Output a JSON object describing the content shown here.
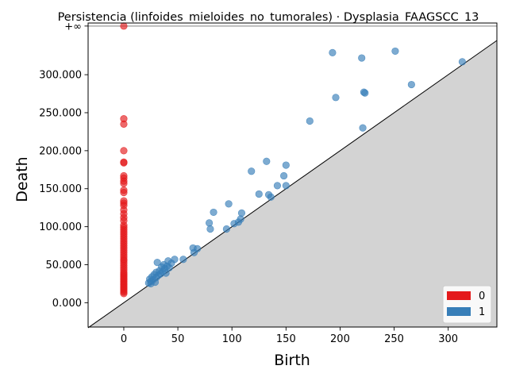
{
  "chart_data": {
    "type": "scatter",
    "title": "Persistencia (linfoides_mieloides_no_tumorales) · Dysplasia_FAAGSCC_13",
    "xlabel": "Birth",
    "ylabel": "Death",
    "xlim": [
      -33,
      345
    ],
    "ylim": [
      -32,
      368
    ],
    "x_ticks": [
      0,
      50,
      100,
      150,
      200,
      250,
      300
    ],
    "x_tick_labels": [
      "0",
      "50",
      "100",
      "150",
      "200",
      "250",
      "300"
    ],
    "y_ticks": [
      0,
      50,
      100,
      150,
      200,
      250,
      300
    ],
    "y_tick_labels": [
      "0.000",
      "50.000",
      "100.000",
      "150.000",
      "200.000",
      "250.000",
      "300.000"
    ],
    "infinity_value": 364,
    "infinity_label": "+∞",
    "diagonal": true,
    "legend": {
      "placement": "lower-right"
    },
    "colors": {
      "h0": "#e41a1c",
      "h1": "#377eb8",
      "shade": "#d3d3d3",
      "inf_line": "#808080"
    },
    "series": [
      {
        "name": "0",
        "color": "#e41a1c",
        "points": [
          [
            0,
            364
          ],
          [
            0,
            242
          ],
          [
            0,
            235
          ],
          [
            0,
            200
          ],
          [
            0,
            185
          ],
          [
            0,
            184
          ],
          [
            0,
            167
          ],
          [
            0,
            164
          ],
          [
            0,
            160
          ],
          [
            0,
            157
          ],
          [
            0,
            148
          ],
          [
            0,
            145
          ],
          [
            0,
            134
          ],
          [
            0,
            131
          ],
          [
            0,
            128
          ],
          [
            0,
            122
          ],
          [
            0,
            117
          ],
          [
            0,
            112
          ],
          [
            0,
            108
          ],
          [
            0,
            102
          ],
          [
            0,
            99
          ],
          [
            0,
            96
          ],
          [
            0,
            93
          ],
          [
            0,
            90
          ],
          [
            0,
            87
          ],
          [
            0,
            84
          ],
          [
            0,
            81
          ],
          [
            0,
            78
          ],
          [
            0,
            75
          ],
          [
            0,
            72
          ],
          [
            0,
            69
          ],
          [
            0,
            66
          ],
          [
            0,
            63
          ],
          [
            0,
            60
          ],
          [
            0,
            57
          ],
          [
            0,
            55
          ],
          [
            0,
            52
          ],
          [
            0,
            49
          ],
          [
            0,
            46
          ],
          [
            0,
            43
          ],
          [
            0,
            40
          ],
          [
            0,
            38
          ],
          [
            0,
            36
          ],
          [
            0,
            34
          ],
          [
            0,
            32
          ],
          [
            0,
            30
          ],
          [
            0,
            28
          ],
          [
            0,
            26
          ],
          [
            0,
            24
          ],
          [
            0,
            22
          ],
          [
            0,
            20
          ],
          [
            0,
            18
          ],
          [
            0,
            16
          ],
          [
            0,
            14
          ],
          [
            0,
            12
          ]
        ]
      },
      {
        "name": "1",
        "color": "#377eb8",
        "points": [
          [
            193,
            329
          ],
          [
            220,
            322
          ],
          [
            251,
            331
          ],
          [
            313,
            317
          ],
          [
            266,
            287
          ],
          [
            222,
            277
          ],
          [
            223,
            276
          ],
          [
            196,
            270
          ],
          [
            172,
            239
          ],
          [
            221,
            230
          ],
          [
            132,
            186
          ],
          [
            150,
            181
          ],
          [
            118,
            173
          ],
          [
            148,
            167
          ],
          [
            142,
            154
          ],
          [
            150,
            154
          ],
          [
            125,
            143
          ],
          [
            134,
            142
          ],
          [
            136,
            139
          ],
          [
            97,
            130
          ],
          [
            83,
            119
          ],
          [
            109,
            118
          ],
          [
            108,
            110
          ],
          [
            106,
            106
          ],
          [
            102,
            104
          ],
          [
            79,
            105
          ],
          [
            80,
            97
          ],
          [
            95,
            97
          ],
          [
            64,
            72
          ],
          [
            68,
            71
          ],
          [
            65,
            66
          ],
          [
            55,
            57
          ],
          [
            47,
            57
          ],
          [
            41,
            55
          ],
          [
            31,
            53
          ],
          [
            44,
            52
          ],
          [
            37,
            50
          ],
          [
            40,
            48
          ],
          [
            35,
            47
          ],
          [
            38,
            45
          ],
          [
            42,
            46
          ],
          [
            33,
            42
          ],
          [
            36,
            41
          ],
          [
            30,
            40
          ],
          [
            28,
            37
          ],
          [
            39,
            39
          ],
          [
            32,
            36
          ],
          [
            26,
            34
          ],
          [
            24,
            31
          ],
          [
            27,
            30
          ],
          [
            25,
            28
          ],
          [
            29,
            27
          ],
          [
            30,
            33
          ],
          [
            34,
            38
          ],
          [
            23,
            26
          ],
          [
            25,
            25
          ]
        ]
      }
    ]
  }
}
